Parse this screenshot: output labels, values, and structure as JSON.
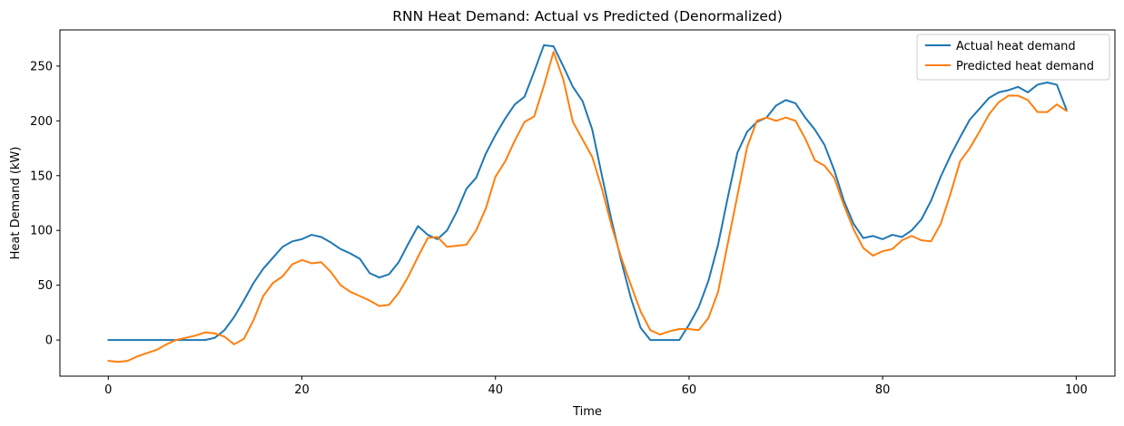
{
  "chart_data": {
    "type": "line",
    "title": "RNN Heat Demand: Actual vs Predicted (Denormalized)",
    "xlabel": "Time",
    "ylabel": "Heat Demand (kW)",
    "xlim": [
      -5,
      104
    ],
    "ylim": [
      -33,
      283
    ],
    "xticks": [
      0,
      20,
      40,
      60,
      80,
      100
    ],
    "yticks": [
      0,
      50,
      100,
      150,
      200,
      250
    ],
    "grid": false,
    "legend_position": "top-right",
    "series": [
      {
        "name": "Actual heat demand",
        "color": "#1f77b4",
        "x": [
          0,
          1,
          2,
          3,
          4,
          5,
          6,
          7,
          8,
          9,
          10,
          11,
          12,
          13,
          14,
          15,
          16,
          17,
          18,
          19,
          20,
          21,
          22,
          23,
          24,
          25,
          26,
          27,
          28,
          29,
          30,
          31,
          32,
          33,
          34,
          35,
          36,
          37,
          38,
          39,
          40,
          41,
          42,
          43,
          44,
          45,
          46,
          47,
          48,
          49,
          50,
          51,
          52,
          53,
          54,
          55,
          56,
          57,
          58,
          59,
          60,
          61,
          62,
          63,
          64,
          65,
          66,
          67,
          68,
          69,
          70,
          71,
          72,
          73,
          74,
          75,
          76,
          77,
          78,
          79,
          80,
          81,
          82,
          83,
          84,
          85,
          86,
          87,
          88,
          89,
          90,
          91,
          92,
          93,
          94,
          95,
          96,
          97,
          98,
          99
        ],
        "values": [
          0,
          0,
          0,
          0,
          0,
          0,
          0,
          0,
          0,
          0,
          0,
          2,
          9,
          21,
          36,
          52,
          65,
          75,
          85,
          90,
          92,
          96,
          94,
          89,
          83,
          79,
          74,
          61,
          57,
          60,
          71,
          88,
          104,
          96,
          92,
          100,
          117,
          138,
          148,
          170,
          187,
          202,
          215,
          222,
          245,
          269,
          268,
          250,
          231,
          218,
          192,
          150,
          109,
          72,
          38,
          11,
          0,
          0,
          0,
          0,
          14,
          30,
          54,
          87,
          130,
          171,
          190,
          199,
          203,
          214,
          219,
          216,
          203,
          192,
          178,
          155,
          127,
          106,
          93,
          95,
          92,
          96,
          94,
          100,
          110,
          127,
          149,
          168,
          185,
          201,
          211,
          221,
          226,
          228,
          231,
          226,
          233,
          235,
          233,
          210
        ]
      },
      {
        "name": "Predicted heat demand",
        "color": "#ff7f0e",
        "x": [
          0,
          1,
          2,
          3,
          4,
          5,
          6,
          7,
          8,
          9,
          10,
          11,
          12,
          13,
          14,
          15,
          16,
          17,
          18,
          19,
          20,
          21,
          22,
          23,
          24,
          25,
          26,
          27,
          28,
          29,
          30,
          31,
          32,
          33,
          34,
          35,
          36,
          37,
          38,
          39,
          40,
          41,
          42,
          43,
          44,
          45,
          46,
          47,
          48,
          49,
          50,
          51,
          52,
          53,
          54,
          55,
          56,
          57,
          58,
          59,
          60,
          61,
          62,
          63,
          64,
          65,
          66,
          67,
          68,
          69,
          70,
          71,
          72,
          73,
          74,
          75,
          76,
          77,
          78,
          79,
          80,
          81,
          82,
          83,
          84,
          85,
          86,
          87,
          88,
          89,
          90,
          91,
          92,
          93,
          94,
          95,
          96,
          97,
          98,
          99
        ],
        "values": [
          -19,
          -20,
          -19,
          -15,
          -12,
          -9,
          -4,
          0,
          2,
          4,
          7,
          6,
          3,
          -4,
          1,
          18,
          40,
          52,
          58,
          69,
          73,
          70,
          71,
          62,
          50,
          44,
          40,
          36,
          31,
          32,
          43,
          58,
          76,
          93,
          94,
          85,
          86,
          87,
          100,
          120,
          149,
          163,
          182,
          199,
          204,
          232,
          263,
          238,
          199,
          183,
          167,
          138,
          104,
          75,
          50,
          26,
          9,
          5,
          8,
          10,
          10,
          9,
          20,
          44,
          88,
          132,
          176,
          200,
          203,
          200,
          203,
          200,
          184,
          164,
          159,
          148,
          123,
          101,
          84,
          77,
          81,
          83,
          91,
          95,
          91,
          90,
          106,
          133,
          163,
          175,
          190,
          206,
          217,
          223,
          223,
          219,
          208,
          208,
          215,
          209
        ]
      }
    ]
  }
}
